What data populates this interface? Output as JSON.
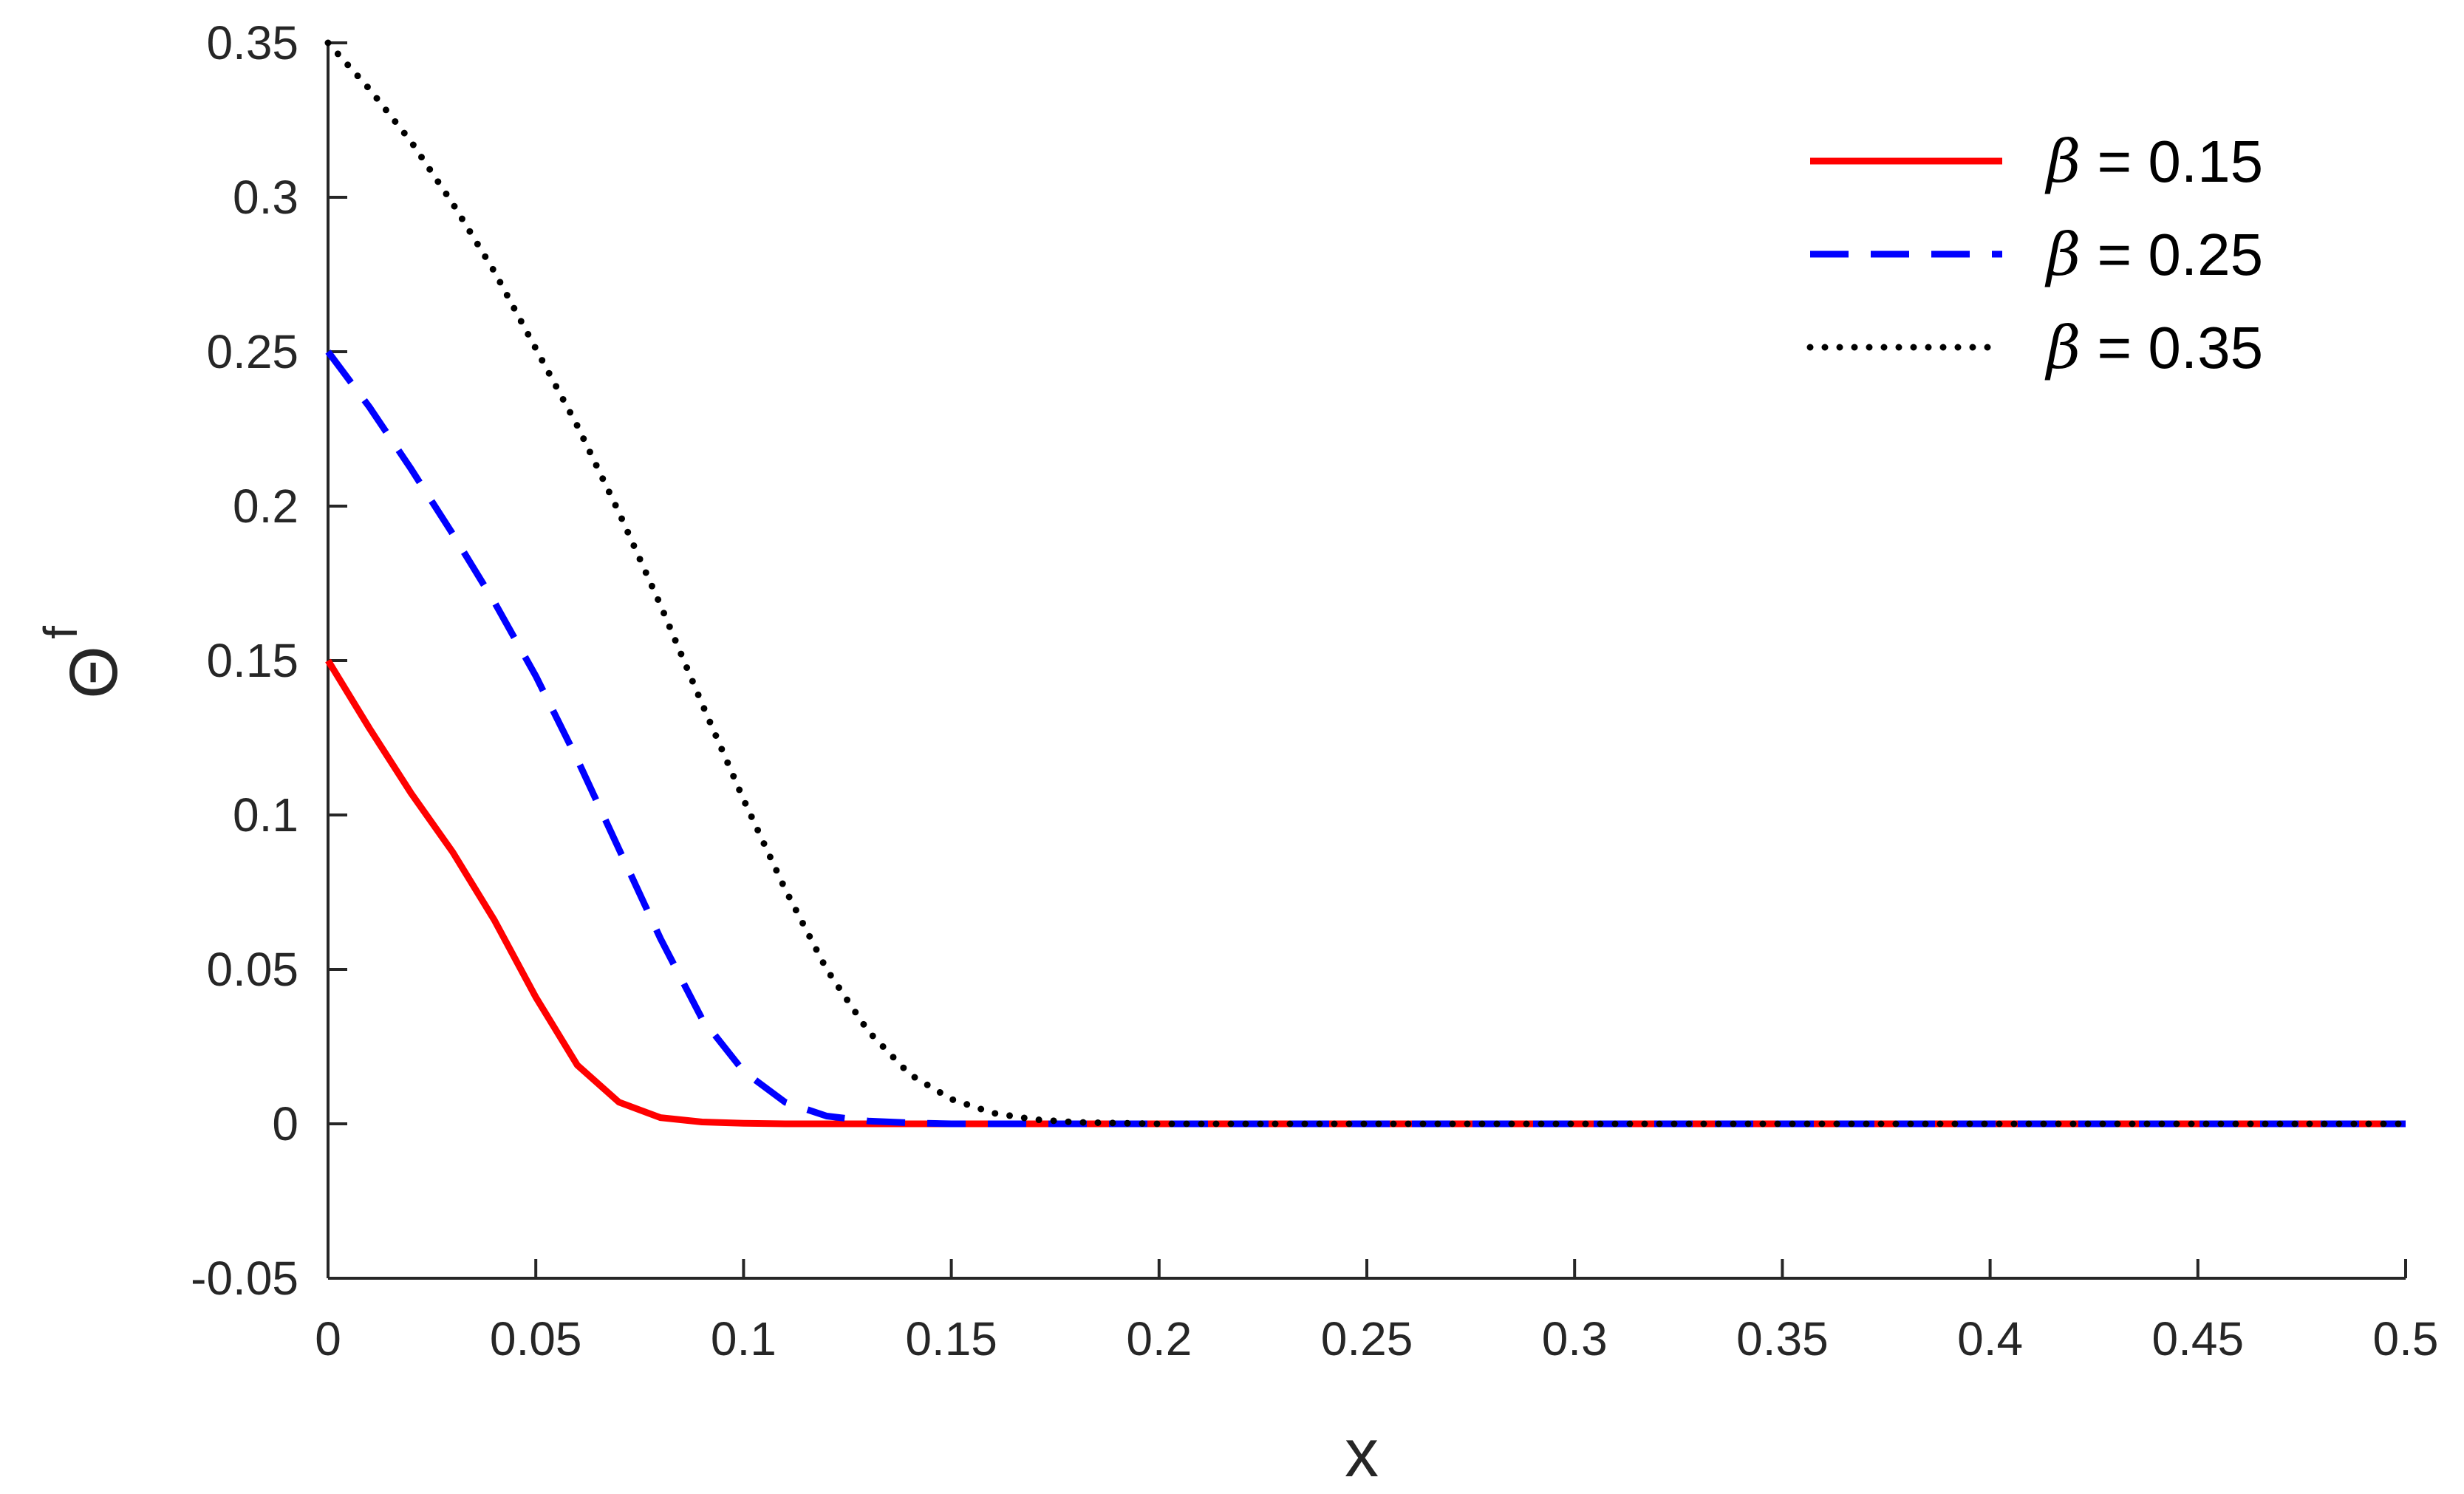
{
  "chart_data": {
    "type": "line",
    "title": "",
    "xlabel": "x",
    "ylabel": "Θ",
    "ylabel_superscript": "f",
    "xlim": [
      0,
      0.5
    ],
    "ylim": [
      -0.05,
      0.35
    ],
    "xticks": [
      0,
      0.05,
      0.1,
      0.15,
      0.2,
      0.25,
      0.3,
      0.35,
      0.4,
      0.45,
      0.5
    ],
    "xtick_labels": [
      "0",
      "0.05",
      "0.1",
      "0.15",
      "0.2",
      "0.25",
      "0.3",
      "0.35",
      "0.4",
      "0.45",
      "0.5"
    ],
    "yticks": [
      -0.05,
      0,
      0.05,
      0.1,
      0.15,
      0.2,
      0.25,
      0.3,
      0.35
    ],
    "ytick_labels": [
      "-0.05",
      "0",
      "0.05",
      "0.1",
      "0.15",
      "0.2",
      "0.25",
      "0.3",
      "0.35"
    ],
    "grid": false,
    "legend_position": "top-right",
    "series": [
      {
        "name": "β = 0.15",
        "beta_symbol": "β",
        "value_label": " = 0.15",
        "color": "#ff0000",
        "style": "solid",
        "x": [
          0,
          0.01,
          0.02,
          0.03,
          0.04,
          0.05,
          0.06,
          0.07,
          0.08,
          0.09,
          0.1,
          0.11,
          0.12,
          0.15,
          0.2,
          0.3,
          0.4,
          0.5
        ],
        "y": [
          0.15,
          0.128,
          0.107,
          0.088,
          0.066,
          0.041,
          0.019,
          0.007,
          0.002,
          0.0006,
          0.0002,
          0,
          0,
          0,
          0,
          0,
          0,
          0
        ]
      },
      {
        "name": "β = 0.25",
        "beta_symbol": "β",
        "value_label": " = 0.25",
        "color": "#0000ff",
        "style": "dashed",
        "x": [
          0,
          0.01,
          0.02,
          0.03,
          0.04,
          0.05,
          0.06,
          0.07,
          0.08,
          0.09,
          0.1,
          0.11,
          0.12,
          0.13,
          0.14,
          0.15,
          0.2,
          0.3,
          0.4,
          0.5
        ],
        "y": [
          0.25,
          0.232,
          0.212,
          0.191,
          0.169,
          0.145,
          0.118,
          0.089,
          0.06,
          0.034,
          0.017,
          0.007,
          0.0025,
          0.0009,
          0.0003,
          0,
          0,
          0,
          0,
          0
        ]
      },
      {
        "name": "β = 0.35",
        "beta_symbol": "β",
        "value_label": " = 0.35",
        "color": "#000000",
        "style": "dotted",
        "x": [
          0,
          0.01,
          0.02,
          0.03,
          0.04,
          0.05,
          0.06,
          0.07,
          0.08,
          0.09,
          0.1,
          0.11,
          0.12,
          0.13,
          0.14,
          0.15,
          0.16,
          0.17,
          0.18,
          0.2,
          0.3,
          0.4,
          0.5
        ],
        "y": [
          0.35,
          0.335,
          0.318,
          0.298,
          0.276,
          0.251,
          0.226,
          0.198,
          0.168,
          0.136,
          0.105,
          0.076,
          0.05,
          0.03,
          0.016,
          0.008,
          0.0035,
          0.0014,
          0.0005,
          0,
          0,
          0,
          0
        ]
      }
    ]
  }
}
